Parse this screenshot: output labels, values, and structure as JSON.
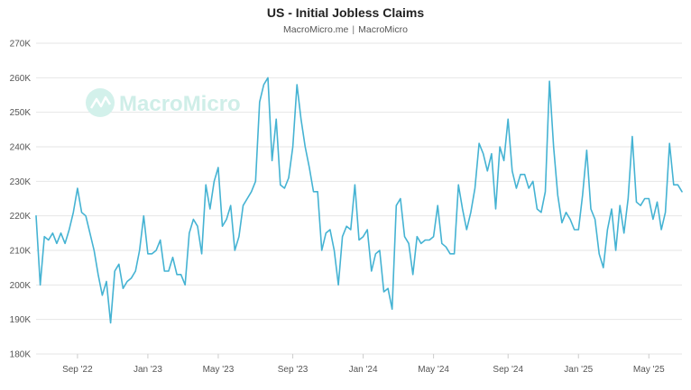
{
  "header": {
    "title": "US - Initial Jobless Claims",
    "source_a": "MacroMicro.me",
    "separator": "|",
    "source_b": "MacroMicro"
  },
  "watermark": {
    "text": "MacroMicro"
  },
  "colors": {
    "line": "#45b3d3",
    "grid": "#e6e6e6",
    "watermark": "#cfeee8"
  },
  "chart_data": {
    "type": "line",
    "title": "US - Initial Jobless Claims",
    "xlabel": "",
    "ylabel": "",
    "ylim": [
      180,
      270
    ],
    "yticks": [
      "180K",
      "190K",
      "200K",
      "210K",
      "220K",
      "230K",
      "240K",
      "250K",
      "260K",
      "270K"
    ],
    "ytick_values": [
      180,
      190,
      200,
      210,
      220,
      230,
      240,
      250,
      260,
      270
    ],
    "xticks": [
      {
        "label": "Sep '22",
        "index": 10
      },
      {
        "label": "Jan '23",
        "index": 27
      },
      {
        "label": "May '23",
        "index": 44
      },
      {
        "label": "Sep '23",
        "index": 62
      },
      {
        "label": "Jan '24",
        "index": 79
      },
      {
        "label": "May '24",
        "index": 96
      },
      {
        "label": "Sep '24",
        "index": 114
      },
      {
        "label": "Jan '25",
        "index": 131
      },
      {
        "label": "May '25",
        "index": 148
      }
    ],
    "series": [
      {
        "name": "US - Initial Jobless Claims",
        "unit": "K",
        "values": [
          220,
          200,
          214,
          213,
          215,
          212,
          215,
          212,
          216,
          221,
          228,
          221,
          220,
          215,
          210,
          203,
          197,
          201,
          189,
          204,
          206,
          199,
          201,
          202,
          204,
          210,
          220,
          209,
          209,
          210,
          213,
          204,
          204,
          208,
          203,
          203,
          200,
          215,
          219,
          217,
          209,
          229,
          222,
          230,
          234,
          217,
          219,
          223,
          210,
          214,
          223,
          225,
          227,
          230,
          253,
          258,
          260,
          236,
          248,
          229,
          228,
          231,
          240,
          258,
          248,
          240,
          234,
          227,
          227,
          210,
          215,
          216,
          210,
          200,
          214,
          217,
          216,
          229,
          213,
          214,
          216,
          204,
          209,
          210,
          198,
          199,
          193,
          223,
          225,
          214,
          212,
          203,
          214,
          212,
          213,
          213,
          214,
          223,
          212,
          211,
          209,
          209,
          229,
          222,
          216,
          221,
          228,
          241,
          238,
          233,
          238,
          222,
          240,
          236,
          248,
          233,
          228,
          232,
          232,
          228,
          230,
          222,
          221,
          227,
          259,
          240,
          226,
          218,
          221,
          219,
          216,
          216,
          226,
          239,
          222,
          219,
          209,
          205,
          216,
          222,
          210,
          223,
          215,
          225,
          243,
          224,
          223,
          225,
          225,
          219,
          224,
          216,
          221,
          241,
          229,
          229,
          227
        ]
      }
    ]
  }
}
